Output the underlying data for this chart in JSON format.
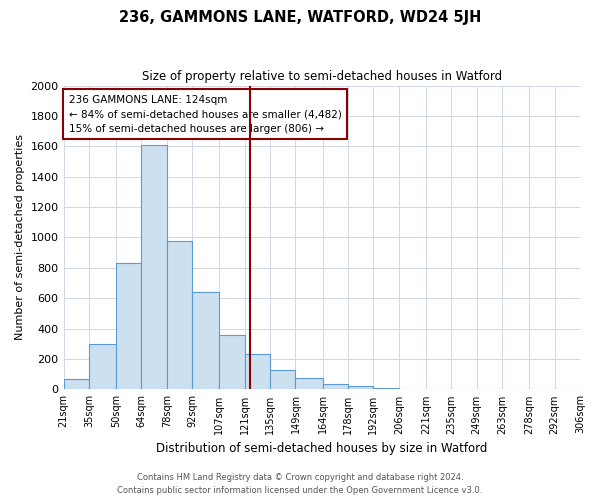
{
  "title": "236, GAMMONS LANE, WATFORD, WD24 5JH",
  "subtitle": "Size of property relative to semi-detached houses in Watford",
  "xlabel": "Distribution of semi-detached houses by size in Watford",
  "ylabel": "Number of semi-detached properties",
  "bin_labels": [
    "21sqm",
    "35sqm",
    "50sqm",
    "64sqm",
    "78sqm",
    "92sqm",
    "107sqm",
    "121sqm",
    "135sqm",
    "149sqm",
    "164sqm",
    "178sqm",
    "192sqm",
    "206sqm",
    "221sqm",
    "235sqm",
    "249sqm",
    "263sqm",
    "278sqm",
    "292sqm",
    "306sqm"
  ],
  "bin_edges": [
    21,
    35,
    50,
    64,
    78,
    92,
    107,
    121,
    135,
    149,
    164,
    178,
    192,
    206,
    221,
    235,
    249,
    263,
    278,
    292,
    306
  ],
  "bar_heights": [
    70,
    300,
    830,
    1610,
    975,
    640,
    360,
    235,
    130,
    75,
    35,
    25,
    10,
    5,
    2,
    2,
    2,
    0,
    0,
    0
  ],
  "bar_color": "#cde0f0",
  "bar_edge_color": "#5b9bd5",
  "vline_x": 124,
  "vline_color": "#8b0000",
  "ylim": [
    0,
    2000
  ],
  "yticks": [
    0,
    200,
    400,
    600,
    800,
    1000,
    1200,
    1400,
    1600,
    1800,
    2000
  ],
  "annotation_title": "236 GAMMONS LANE: 124sqm",
  "annotation_line1": "← 84% of semi-detached houses are smaller (4,482)",
  "annotation_line2": "15% of semi-detached houses are larger (806) →",
  "annotation_box_color": "#ffffff",
  "annotation_box_edge": "#8b0000",
  "footer_line1": "Contains HM Land Registry data © Crown copyright and database right 2024.",
  "footer_line2": "Contains public sector information licensed under the Open Government Licence v3.0.",
  "background_color": "#ffffff",
  "grid_color": "#d0d8e8"
}
